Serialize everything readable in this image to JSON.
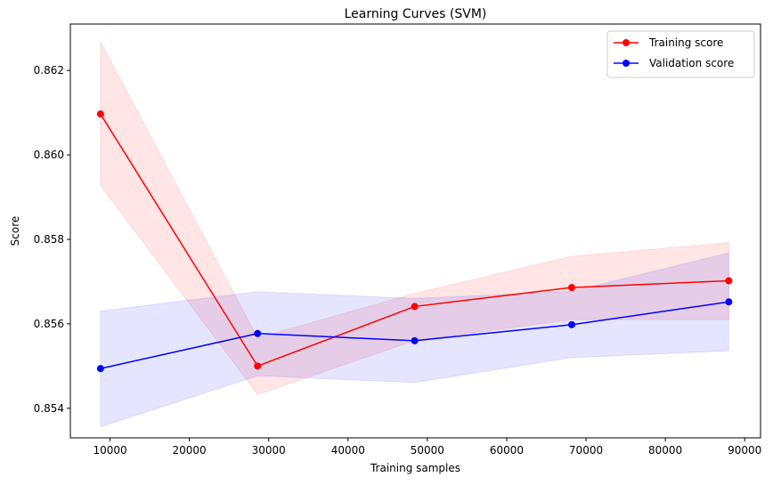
{
  "chart_data": {
    "type": "line",
    "title": "Learning Curves (SVM)",
    "xlabel": "Training samples",
    "ylabel": "Score",
    "xlim": [
      5000,
      92000
    ],
    "ylim": [
      0.8533,
      0.8631
    ],
    "xticks": [
      10000,
      20000,
      30000,
      40000,
      50000,
      60000,
      70000,
      80000,
      90000
    ],
    "yticks": [
      0.854,
      0.856,
      0.858,
      0.86,
      0.862
    ],
    "xtick_labels": [
      "10000",
      "20000",
      "30000",
      "40000",
      "50000",
      "60000",
      "70000",
      "80000",
      "90000"
    ],
    "ytick_labels": [
      "0.854",
      "0.856",
      "0.858",
      "0.860",
      "0.862"
    ],
    "grid": false,
    "legend_position": "top-right",
    "x": [
      8800,
      28600,
      48400,
      68200,
      88000
    ],
    "series": [
      {
        "name": "Training score",
        "color": "#ff0000",
        "values": [
          0.86097,
          0.855,
          0.85641,
          0.85686,
          0.85702
        ],
        "band_lower": [
          0.85928,
          0.85433,
          0.8556,
          0.8561,
          0.8561
        ],
        "band_upper": [
          0.86268,
          0.85567,
          0.85672,
          0.8576,
          0.85792
        ]
      },
      {
        "name": "Validation score",
        "color": "#0000ff",
        "values": [
          0.85494,
          0.85577,
          0.8556,
          0.85598,
          0.85652
        ],
        "band_lower": [
          0.85356,
          0.85477,
          0.85461,
          0.8552,
          0.85536
        ],
        "band_upper": [
          0.8563,
          0.85676,
          0.8566,
          0.85677,
          0.85768
        ]
      }
    ]
  }
}
